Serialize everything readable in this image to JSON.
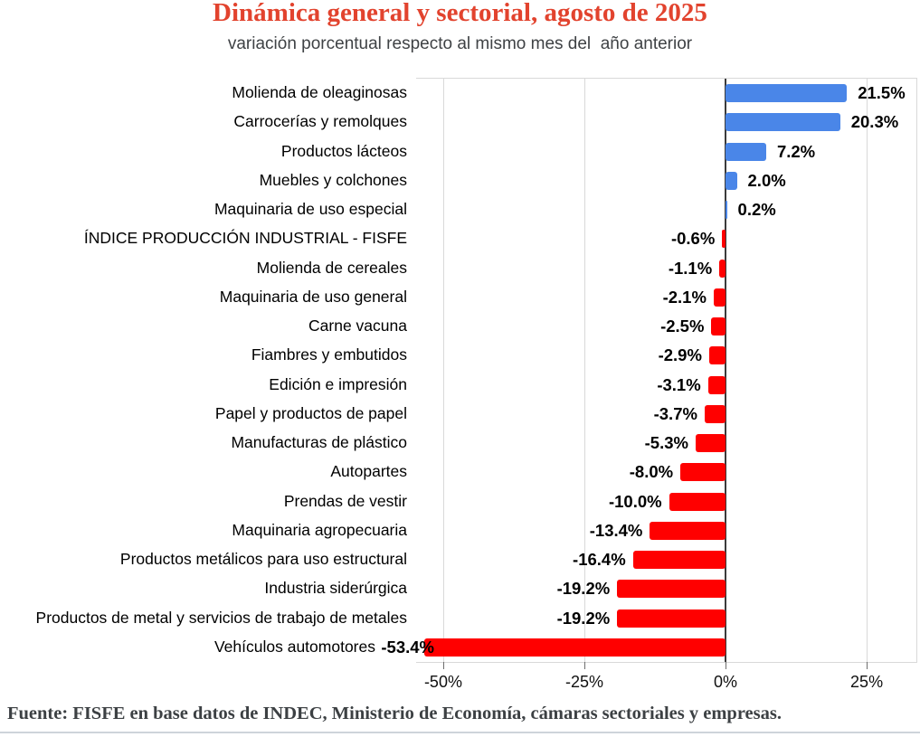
{
  "title": "Dinámica general y sectorial, agosto de 2025",
  "subtitle": "variación porcentual respecto al mismo mes del  año anterior",
  "source": "Fuente: FISFE en base datos de INDEC, Ministerio de Economía, cámaras sectoriales y empresas.",
  "colors": {
    "title": "#e2432e",
    "subtitle": "#3f4245",
    "source": "#3c4043",
    "bar_positive": "#4a86e8",
    "bar_negative": "#ff0000",
    "gridline": "#d9d9d9",
    "zero_axis": "#3b3b3b",
    "divider": "#ced4da"
  },
  "chart_data": {
    "type": "bar",
    "orientation": "horizontal",
    "title": "Dinámica general y sectorial, agosto de 2025",
    "subtitle": "variación porcentual respecto al mismo mes del  año anterior",
    "xlabel": "",
    "ylabel": "",
    "grid": true,
    "legend": "none",
    "axis_range": [
      -54.8,
      33.8
    ],
    "x_ticks": [
      {
        "value": -50,
        "label": "-50%"
      },
      {
        "value": -25,
        "label": "-25%"
      },
      {
        "value": 0,
        "label": "0%"
      },
      {
        "value": 25,
        "label": "25%"
      }
    ],
    "categories": [
      "Molienda de oleaginosas",
      "Carrocerías y remolques",
      "Productos lácteos",
      "Muebles y colchones",
      "Maquinaria de uso especial",
      "ÍNDICE PRODUCCIÓN INDUSTRIAL - FISFE",
      "Molienda de cereales",
      "Maquinaria de uso general",
      "Carne vacuna",
      "Fiambres y embutidos",
      "Edición e impresión",
      "Papel y productos de papel",
      "Manufacturas de plástico",
      "Autopartes",
      "Prendas de vestir",
      "Maquinaria agropecuaria",
      "Productos metálicos para uso estructural",
      "Industria siderúrgica",
      "Productos de metal y servicios de trabajo de metales",
      "Vehículos automotores"
    ],
    "values": [
      21.5,
      20.3,
      7.2,
      2.0,
      0.2,
      -0.6,
      -1.1,
      -2.1,
      -2.5,
      -2.9,
      -3.1,
      -3.7,
      -5.3,
      -8.0,
      -10.0,
      -13.4,
      -16.4,
      -19.2,
      -19.2,
      -53.4
    ],
    "value_labels": [
      "21.5%",
      "20.3%",
      "7.2%",
      "2.0%",
      "0.2%",
      "-0.6%",
      "-1.1%",
      "-2.1%",
      "-2.5%",
      "-2.9%",
      "-3.1%",
      "-3.7%",
      "-5.3%",
      "-8.0%",
      "-10.0%",
      "-13.4%",
      "-16.4%",
      "-19.2%",
      "-19.2%",
      "-53.4%"
    ]
  }
}
